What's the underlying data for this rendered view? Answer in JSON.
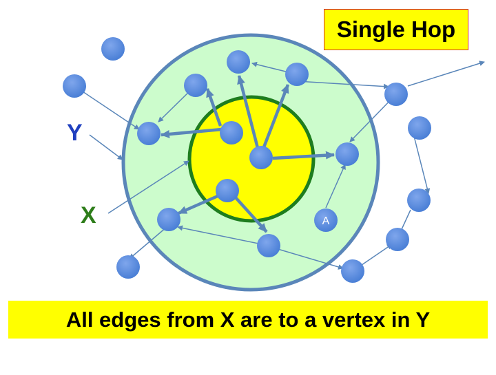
{
  "title": "Single Hop",
  "caption": "All edges from X are to a vertex in Y",
  "labels": {
    "y": "Y",
    "x": "X",
    "vertex_a": "A"
  },
  "colors": {
    "outer_fill": "#ccfccc",
    "outer_stroke": "#5a86b9",
    "inner_fill": "#ffff00",
    "inner_stroke": "#1e7d1e",
    "node_fill": "#5b8ede",
    "edge": "#5a86b9",
    "label_y": "#1f3fbf",
    "label_x": "#2e7d1a",
    "title_border": "#d32f2f",
    "highlight": "#ffff00"
  }
}
